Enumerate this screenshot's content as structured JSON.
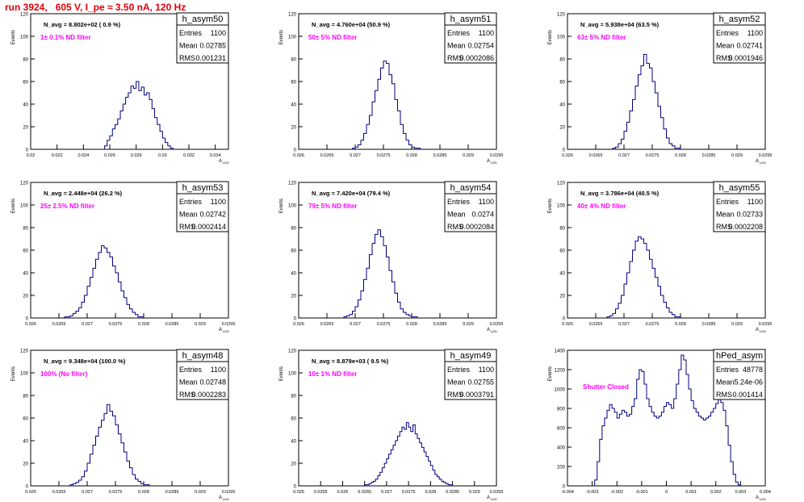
{
  "title": "run 3924,   605 V, I_pe ≈ 3.50 nA, 120 Hz",
  "colors": {
    "title": "#e0000a",
    "annotation": "#ff00ff",
    "histogram": "#000080",
    "frame": "#000000"
  },
  "stat_labels": {
    "entries": "Entries",
    "mean": "Mean",
    "rms": "RMS"
  },
  "chart_data": [
    {
      "type": "histogram",
      "name": "h_asym50",
      "stats": {
        "entries": "1100",
        "mean": "0.02785",
        "rms": "0.001231"
      },
      "navg": "N_avg = 8.802e+02 ( 0.9 %)",
      "note": "1± 0.1% ND filter",
      "ylabel": "Events",
      "xlabel": "",
      "xlim": [
        0.02,
        0.035
      ],
      "ylim": [
        0,
        120
      ],
      "xticks": [
        0.02,
        0.022,
        0.024,
        0.026,
        0.028,
        0.03,
        0.032,
        0.034
      ],
      "xtick_labels": [
        "0.02",
        "0.022",
        "0.024",
        "0.026",
        "0.028",
        "0.03",
        "0.032",
        "0.034"
      ],
      "yticks": [
        0,
        20,
        40,
        60,
        80,
        100,
        120
      ],
      "ytick_labels": [
        "0",
        "20",
        "40",
        "60",
        "80",
        "100",
        "120"
      ],
      "bin_edges": [
        0.0256,
        0.0258,
        0.026,
        0.0262,
        0.0264,
        0.0266,
        0.0268,
        0.027,
        0.0272,
        0.0274,
        0.0276,
        0.0278,
        0.028,
        0.0282,
        0.0284,
        0.0286,
        0.0288,
        0.029,
        0.0292,
        0.0294,
        0.0296,
        0.0298,
        0.03,
        0.0302,
        0.0304,
        0.0306,
        0.0308
      ],
      "counts": [
        3,
        8,
        12,
        18,
        22,
        27,
        34,
        40,
        46,
        50,
        56,
        54,
        60,
        52,
        55,
        48,
        50,
        44,
        36,
        28,
        22,
        16,
        10,
        6,
        3,
        1
      ]
    },
    {
      "type": "histogram",
      "name": "h_asym51",
      "stats": {
        "entries": "1100",
        "mean": "0.02754",
        "rms": "0.0002086"
      },
      "navg": "N_avg = 4.760e+04 (50.9 %)",
      "note": "50± 5% ND filter",
      "ylabel": "Events",
      "xlabel": "",
      "xlim": [
        0.026,
        0.0295
      ],
      "ylim": [
        0,
        120
      ],
      "xticks": [
        0.026,
        0.0265,
        0.027,
        0.0275,
        0.028,
        0.0285,
        0.029,
        0.0295
      ],
      "xtick_labels": [
        "0.026",
        "0.0265",
        "0.027",
        "0.0275",
        "0.028",
        "0.0285",
        "0.029",
        "0.0295"
      ],
      "yticks": [
        0,
        20,
        40,
        60,
        80,
        100,
        120
      ],
      "ytick_labels": [
        "0",
        "20",
        "40",
        "60",
        "80",
        "100",
        "120"
      ],
      "bin_edges": [
        0.02695,
        0.027,
        0.02705,
        0.0271,
        0.02715,
        0.0272,
        0.02725,
        0.0273,
        0.02735,
        0.0274,
        0.02745,
        0.0275,
        0.02755,
        0.0276,
        0.02765,
        0.0277,
        0.02775,
        0.0278,
        0.02785,
        0.0279,
        0.02795,
        0.028,
        0.02805,
        0.0281,
        0.02815
      ],
      "counts": [
        1,
        2,
        4,
        8,
        14,
        22,
        30,
        42,
        52,
        62,
        72,
        78,
        76,
        66,
        58,
        44,
        34,
        22,
        14,
        8,
        4,
        2,
        1,
        1
      ]
    },
    {
      "type": "histogram",
      "name": "h_asym52",
      "stats": {
        "entries": "1100",
        "mean": "0.02741",
        "rms": "0.0001946"
      },
      "navg": "N_avg = 5.938e+04 (63.5 %)",
      "note": "63± 5% ND filter",
      "ylabel": "Events",
      "xlabel": "",
      "xlim": [
        0.026,
        0.0295
      ],
      "ylim": [
        0,
        120
      ],
      "xticks": [
        0.026,
        0.0265,
        0.027,
        0.0275,
        0.028,
        0.0285,
        0.029,
        0.0295
      ],
      "xtick_labels": [
        "0.026",
        "0.0265",
        "0.027",
        "0.0275",
        "0.028",
        "0.0285",
        "0.029",
        "0.0295"
      ],
      "yticks": [
        0,
        20,
        40,
        60,
        80,
        100,
        120
      ],
      "ytick_labels": [
        "0",
        "20",
        "40",
        "60",
        "80",
        "100",
        "120"
      ],
      "bin_edges": [
        0.0268,
        0.02685,
        0.0269,
        0.02695,
        0.027,
        0.02705,
        0.0271,
        0.02715,
        0.0272,
        0.02725,
        0.0273,
        0.02735,
        0.0274,
        0.02745,
        0.0275,
        0.02755,
        0.0276,
        0.02765,
        0.0277,
        0.02775,
        0.0278,
        0.02785,
        0.0279,
        0.02795,
        0.028
      ],
      "counts": [
        1,
        2,
        5,
        9,
        16,
        24,
        34,
        44,
        56,
        66,
        74,
        84,
        76,
        72,
        60,
        50,
        38,
        28,
        18,
        10,
        5,
        3,
        1,
        1
      ]
    },
    {
      "type": "histogram",
      "name": "h_asym53",
      "stats": {
        "entries": "1100",
        "mean": "0.02742",
        "rms": "0.0002414"
      },
      "navg": "N_avg = 2.448e+04 (26.2 %)",
      "note": "25± 2.5% ND filter",
      "ylabel": "Events",
      "xlabel": "",
      "xlim": [
        0.026,
        0.0295
      ],
      "ylim": [
        0,
        120
      ],
      "xticks": [
        0.026,
        0.0265,
        0.027,
        0.0275,
        0.028,
        0.0285,
        0.029,
        0.0295
      ],
      "xtick_labels": [
        "0.026",
        "0.0265",
        "0.027",
        "0.0275",
        "0.028",
        "0.0285",
        "0.029",
        "0.0295"
      ],
      "yticks": [
        0,
        20,
        40,
        60,
        80,
        100,
        120
      ],
      "ytick_labels": [
        "0",
        "20",
        "40",
        "60",
        "80",
        "100",
        "120"
      ],
      "bin_edges": [
        0.0266,
        0.02665,
        0.0267,
        0.02675,
        0.0268,
        0.02685,
        0.0269,
        0.02695,
        0.027,
        0.02705,
        0.0271,
        0.02715,
        0.0272,
        0.02725,
        0.0273,
        0.02735,
        0.0274,
        0.02745,
        0.0275,
        0.02755,
        0.0276,
        0.02765,
        0.0277,
        0.02775,
        0.0278,
        0.02785,
        0.0279,
        0.02795,
        0.028
      ],
      "counts": [
        1,
        1,
        2,
        4,
        6,
        9,
        14,
        20,
        28,
        36,
        44,
        52,
        58,
        64,
        62,
        58,
        54,
        46,
        40,
        32,
        24,
        18,
        12,
        8,
        5,
        3,
        1,
        1
      ]
    },
    {
      "type": "histogram",
      "name": "h_asym54",
      "stats": {
        "entries": "1100",
        "mean": "0.0274",
        "rms": "0.0002084"
      },
      "navg": "N_avg = 7.420e+04 (79.4 %)",
      "note": "79± 5% ND filter",
      "ylabel": "Events",
      "xlabel": "",
      "xlim": [
        0.026,
        0.0295
      ],
      "ylim": [
        0,
        120
      ],
      "xticks": [
        0.026,
        0.0265,
        0.027,
        0.0275,
        0.028,
        0.0285,
        0.029,
        0.0295
      ],
      "xtick_labels": [
        "0.026",
        "0.0265",
        "0.027",
        "0.0275",
        "0.028",
        "0.0285",
        "0.029",
        "0.0295"
      ],
      "yticks": [
        0,
        20,
        40,
        60,
        80,
        100,
        120
      ],
      "ytick_labels": [
        "0",
        "20",
        "40",
        "60",
        "80",
        "100",
        "120"
      ],
      "bin_edges": [
        0.0268,
        0.02685,
        0.0269,
        0.02695,
        0.027,
        0.02705,
        0.0271,
        0.02715,
        0.0272,
        0.02725,
        0.0273,
        0.02735,
        0.0274,
        0.02745,
        0.0275,
        0.02755,
        0.0276,
        0.02765,
        0.0277,
        0.02775,
        0.0278,
        0.02785,
        0.0279,
        0.02795,
        0.028,
        0.02805,
        0.0281
      ],
      "counts": [
        1,
        2,
        3,
        6,
        10,
        16,
        24,
        34,
        44,
        56,
        66,
        74,
        78,
        72,
        64,
        54,
        42,
        32,
        22,
        14,
        8,
        5,
        3,
        2,
        1,
        1
      ]
    },
    {
      "type": "histogram",
      "name": "h_asym55",
      "stats": {
        "entries": "1100",
        "mean": "0.02733",
        "rms": "0.0002208"
      },
      "navg": "N_avg = 3.786e+04 (40.5 %)",
      "note": "40± 4% ND filter",
      "ylabel": "Events",
      "xlabel": "",
      "xlim": [
        0.026,
        0.0295
      ],
      "ylim": [
        0,
        120
      ],
      "xticks": [
        0.026,
        0.0265,
        0.027,
        0.0275,
        0.028,
        0.0285,
        0.029,
        0.0295
      ],
      "xtick_labels": [
        "0.026",
        "0.0265",
        "0.027",
        "0.0275",
        "0.028",
        "0.0285",
        "0.029",
        "0.0295"
      ],
      "yticks": [
        0,
        20,
        40,
        60,
        80,
        100,
        120
      ],
      "ytick_labels": [
        "0",
        "20",
        "40",
        "60",
        "80",
        "100",
        "120"
      ],
      "bin_edges": [
        0.0267,
        0.02675,
        0.0268,
        0.02685,
        0.0269,
        0.02695,
        0.027,
        0.02705,
        0.0271,
        0.02715,
        0.0272,
        0.02725,
        0.0273,
        0.02735,
        0.0274,
        0.02745,
        0.0275,
        0.02755,
        0.0276,
        0.02765,
        0.0277,
        0.02775,
        0.0278,
        0.02785,
        0.0279,
        0.02795,
        0.028
      ],
      "counts": [
        1,
        2,
        4,
        8,
        13,
        20,
        30,
        40,
        50,
        60,
        68,
        72,
        70,
        66,
        60,
        52,
        44,
        36,
        28,
        20,
        14,
        9,
        5,
        3,
        1,
        1
      ]
    },
    {
      "type": "histogram",
      "name": "h_asym48",
      "stats": {
        "entries": "1100",
        "mean": "0.02748",
        "rms": "0.0002283"
      },
      "navg": "N_avg = 9.348e+04 (100.0 %)",
      "note": "100% (No filter)",
      "ylabel": "Events",
      "xlabel": "",
      "xlim": [
        0.026,
        0.0295
      ],
      "ylim": [
        0,
        120
      ],
      "xticks": [
        0.026,
        0.0265,
        0.027,
        0.0275,
        0.028,
        0.0285,
        0.029,
        0.0295
      ],
      "xtick_labels": [
        "0.026",
        "0.0265",
        "0.027",
        "0.0275",
        "0.028",
        "0.0285",
        "0.029",
        "0.0295"
      ],
      "yticks": [
        0,
        20,
        40,
        60,
        80,
        100,
        120
      ],
      "ytick_labels": [
        "0",
        "20",
        "40",
        "60",
        "80",
        "100",
        "120"
      ],
      "bin_edges": [
        0.0267,
        0.02675,
        0.0268,
        0.02685,
        0.0269,
        0.02695,
        0.027,
        0.02705,
        0.0271,
        0.02715,
        0.0272,
        0.02725,
        0.0273,
        0.02735,
        0.0274,
        0.02745,
        0.0275,
        0.02755,
        0.0276,
        0.02765,
        0.0277,
        0.02775,
        0.0278,
        0.02785,
        0.0279,
        0.02795,
        0.028,
        0.02805,
        0.0281
      ],
      "counts": [
        1,
        2,
        3,
        5,
        8,
        13,
        20,
        28,
        36,
        44,
        52,
        58,
        64,
        72,
        66,
        62,
        54,
        46,
        38,
        30,
        22,
        16,
        10,
        6,
        4,
        2,
        1,
        1
      ]
    },
    {
      "type": "histogram",
      "name": "h_asym49",
      "stats": {
        "entries": "1100",
        "mean": "0.02755",
        "rms": "0.0003791"
      },
      "navg": "N_avg = 8.879e+03 ( 9.5 %)",
      "note": "10± 1% ND filter",
      "ylabel": "Events",
      "xlabel": "",
      "xlim": [
        0.025,
        0.0295
      ],
      "ylim": [
        0,
        120
      ],
      "xticks": [
        0.025,
        0.0255,
        0.026,
        0.0265,
        0.027,
        0.0275,
        0.028,
        0.0285,
        0.029,
        0.0295
      ],
      "xtick_labels": [
        "0.025",
        "0.0255",
        "0.026",
        "0.0265",
        "0.027",
        "0.0275",
        "0.028",
        "0.0285",
        "0.029",
        "0.0295"
      ],
      "yticks": [
        0,
        20,
        40,
        60,
        80,
        100,
        120
      ],
      "ytick_labels": [
        "0",
        "20",
        "40",
        "60",
        "80",
        "100",
        "120"
      ],
      "bin_edges": [
        0.0265,
        0.02655,
        0.0266,
        0.02665,
        0.0267,
        0.02675,
        0.0268,
        0.02685,
        0.0269,
        0.02695,
        0.027,
        0.02705,
        0.0271,
        0.02715,
        0.0272,
        0.02725,
        0.0273,
        0.02735,
        0.0274,
        0.02745,
        0.0275,
        0.02755,
        0.0276,
        0.02765,
        0.0277,
        0.02775,
        0.0278,
        0.02785,
        0.0279,
        0.02795,
        0.028,
        0.02805,
        0.0281,
        0.02815,
        0.0282,
        0.02825,
        0.0283,
        0.02835,
        0.0284,
        0.02845,
        0.0285
      ],
      "counts": [
        1,
        1,
        2,
        3,
        4,
        6,
        9,
        12,
        16,
        20,
        24,
        28,
        32,
        36,
        40,
        44,
        48,
        52,
        50,
        56,
        52,
        48,
        54,
        46,
        42,
        38,
        34,
        30,
        26,
        22,
        18,
        14,
        10,
        8,
        6,
        4,
        3,
        2,
        1,
        1
      ]
    },
    {
      "type": "histogram",
      "name": "hPed_asym",
      "stats": {
        "entries": "48778",
        "mean": "5.24e-06",
        "rms": "0.001414"
      },
      "navg": "",
      "note": "Shutter Closed",
      "ylabel": "Events",
      "xlabel": "",
      "xlim": [
        -0.004,
        0.004
      ],
      "ylim": [
        0,
        1400
      ],
      "xticks": [
        -0.004,
        -0.003,
        -0.002,
        -0.001,
        0,
        0.001,
        0.002,
        0.003,
        0.004
      ],
      "xtick_labels": [
        "-0.004",
        "-0.003",
        "-0.002",
        "-0.001",
        "0",
        "0.001",
        "0.002",
        "0.003",
        "0.004"
      ],
      "yticks": [
        0,
        200,
        400,
        600,
        800,
        1000,
        1200,
        1400
      ],
      "ytick_labels": [
        "0",
        "200",
        "400",
        "600",
        "800",
        "1000",
        "1200",
        "1400"
      ],
      "bin_edges": [
        -0.0029,
        -0.0028,
        -0.0027,
        -0.0026,
        -0.0025,
        -0.0024,
        -0.0023,
        -0.0022,
        -0.0021,
        -0.002,
        -0.0019,
        -0.0018,
        -0.0017,
        -0.0016,
        -0.0015,
        -0.0014,
        -0.0013,
        -0.0012,
        -0.0011,
        -0.001,
        -0.0009,
        -0.0008,
        -0.0007,
        -0.0006,
        -0.0005,
        -0.0004,
        -0.0003,
        -0.0002,
        -0.0001,
        0,
        0.0001,
        0.0002,
        0.0003,
        0.0004,
        0.0005,
        0.0006,
        0.0007,
        0.0008,
        0.0009,
        0.001,
        0.0011,
        0.0012,
        0.0013,
        0.0014,
        0.0015,
        0.0016,
        0.0017,
        0.0018,
        0.0019,
        0.002,
        0.0021,
        0.0022,
        0.0023,
        0.0024,
        0.0025,
        0.0026,
        0.0027,
        0.0028,
        0.0029,
        0.003
      ],
      "counts": [
        60,
        250,
        480,
        620,
        700,
        780,
        840,
        800,
        760,
        700,
        740,
        780,
        760,
        720,
        740,
        820,
        900,
        1100,
        1200,
        1180,
        1050,
        900,
        820,
        760,
        720,
        700,
        720,
        760,
        820,
        860,
        840,
        800,
        900,
        1050,
        1200,
        1350,
        1300,
        1150,
        1000,
        880,
        800,
        760,
        720,
        700,
        680,
        700,
        720,
        760,
        800,
        850,
        900,
        860,
        780,
        620,
        420,
        250,
        120,
        40,
        10
      ]
    }
  ]
}
